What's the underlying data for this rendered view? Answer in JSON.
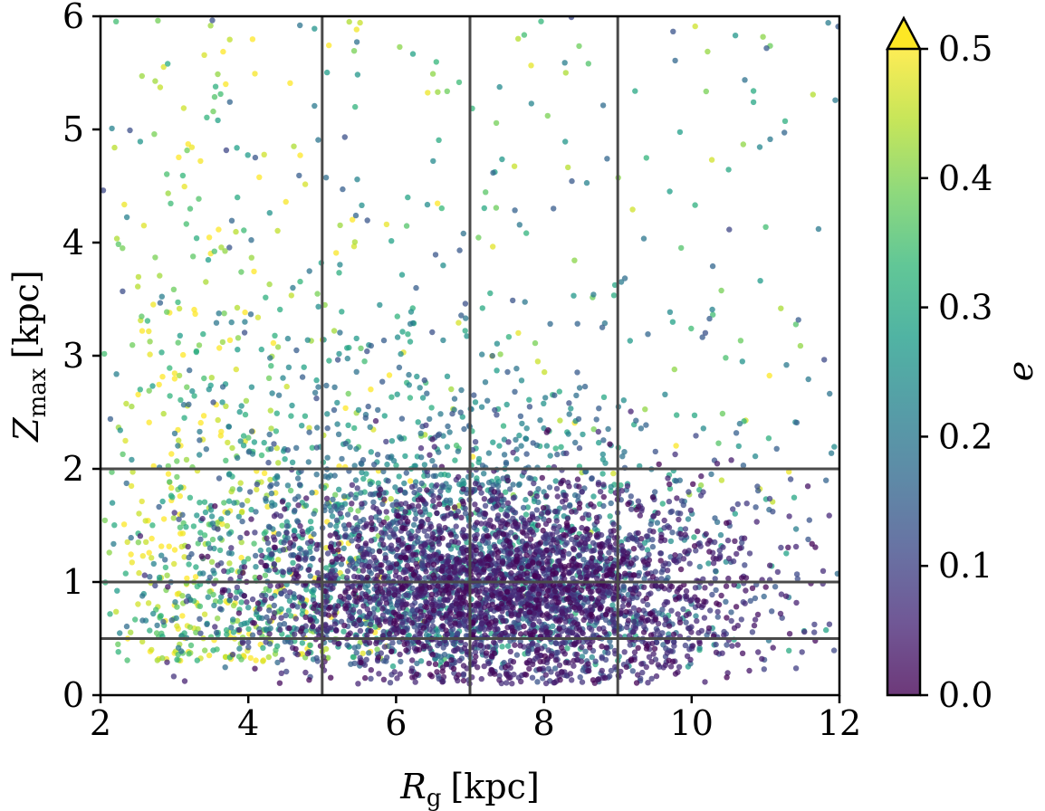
{
  "chart_data": {
    "type": "scatter",
    "xlabel": {
      "symbol": "R",
      "subscript": "g",
      "unit": "[kpc]"
    },
    "ylabel": {
      "symbol": "Z",
      "subscript": "max",
      "unit": "[kpc]"
    },
    "xlim": [
      2,
      12
    ],
    "ylim": [
      0,
      6
    ],
    "xticks": [
      "2",
      "4",
      "6",
      "8",
      "10",
      "12"
    ],
    "yticks": [
      "0",
      "1",
      "2",
      "3",
      "4",
      "5",
      "6"
    ],
    "grid_vertical": [
      5,
      7,
      9
    ],
    "grid_horizontal": [
      0.5,
      1,
      2
    ],
    "colorbar": {
      "label": "e",
      "range": [
        0.0,
        0.5
      ],
      "extend": "max",
      "colormap": "viridis",
      "ticks": [
        "0.0",
        "0.1",
        "0.2",
        "0.3",
        "0.4",
        "0.5"
      ]
    },
    "points": {
      "count": 5500,
      "description_of_population": "Dense cluster of low-e stars near R_g 7-10 kpc, Z_max 0.2-2 kpc; high-e (yellow) stars concentrated at R_g 2-5 kpc spread up to Z_max 6 kpc",
      "seed": 12345
    }
  },
  "colors": {
    "viridis": [
      "#440154",
      "#482878",
      "#3e4a89",
      "#31688e",
      "#26828e",
      "#1f9e89",
      "#35b779",
      "#6ece58",
      "#b5de2b",
      "#fde725"
    ],
    "grid": "#4a4a4a",
    "axes": "#000000"
  }
}
